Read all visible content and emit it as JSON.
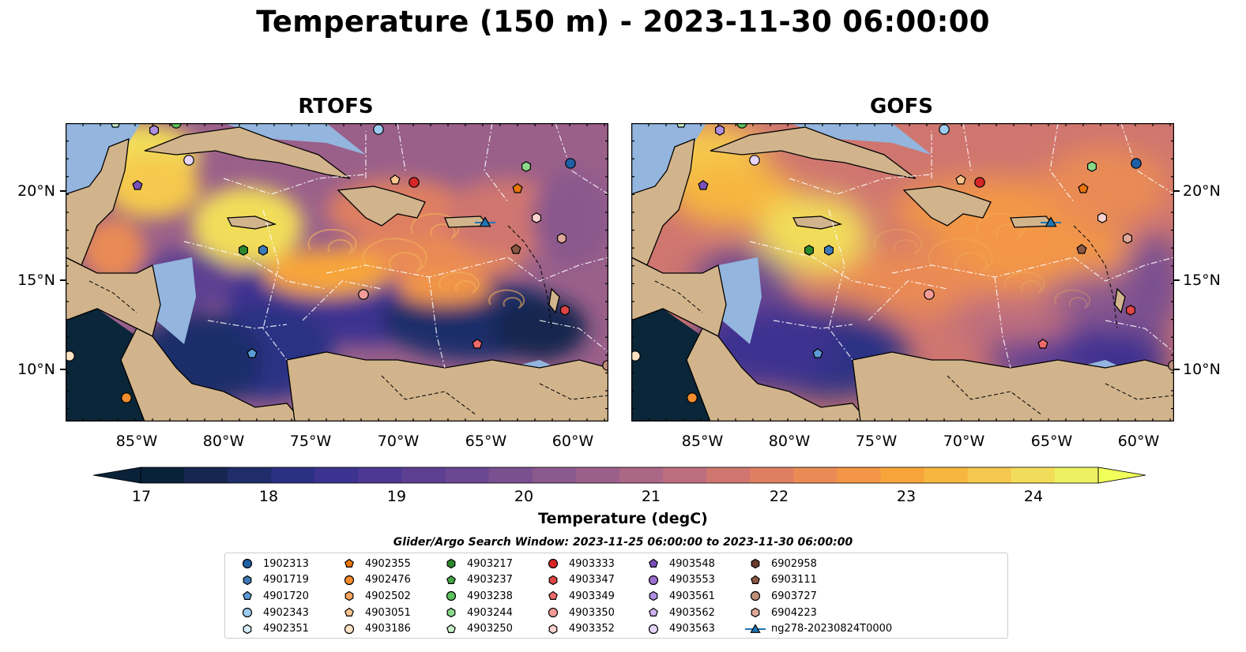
{
  "title": "Temperature (150 m) - 2023-11-30 06:00:00",
  "panels": [
    {
      "title": "RTOFS"
    },
    {
      "title": "GOFS"
    }
  ],
  "lat_ticks": [
    "20°N",
    "15°N",
    "10°N"
  ],
  "lon_ticks": [
    "85°W",
    "80°W",
    "75°W",
    "70°W",
    "65°W",
    "60°W"
  ],
  "colorbar": {
    "label": "Temperature (degC)",
    "ticks": [
      "17",
      "18",
      "19",
      "20",
      "21",
      "22",
      "23",
      "24"
    ],
    "range": [
      17,
      24.5
    ],
    "colors": [
      "#09223a",
      "#172650",
      "#1f2d6a",
      "#2c3084",
      "#3c3390",
      "#4d3993",
      "#5d3f92",
      "#6b4791",
      "#7a5090",
      "#8a598d",
      "#9a608a",
      "#ab6786",
      "#bd6e7e",
      "#cf7670",
      "#de7f62",
      "#ea8b55",
      "#f39747",
      "#f7a53a",
      "#f7b640",
      "#f5c94d",
      "#f2dd5a",
      "#eef064"
    ]
  },
  "search_window": "Glider/Argo Search Window: 2023-11-25 06:00:00 to 2023-11-30 06:00:00",
  "legend": [
    {
      "label": "1902313",
      "shape": "circle",
      "color": "#1f5fa6"
    },
    {
      "label": "4901719",
      "shape": "hexagon",
      "color": "#3d7ab8"
    },
    {
      "label": "4901720",
      "shape": "pentagon",
      "color": "#5b9bd5"
    },
    {
      "label": "4902343",
      "shape": "circle",
      "color": "#9ccbef"
    },
    {
      "label": "4902351",
      "shape": "hexagon",
      "color": "#d6ecfa"
    },
    {
      "label": "4902355",
      "shape": "pentagon",
      "color": "#e8750c"
    },
    {
      "label": "4902476",
      "shape": "circle",
      "color": "#f28c2e"
    },
    {
      "label": "4902502",
      "shape": "hexagon",
      "color": "#f7a65c"
    },
    {
      "label": "4903051",
      "shape": "pentagon",
      "color": "#fbc58e"
    },
    {
      "label": "4903186",
      "shape": "circle",
      "color": "#fde3c4"
    },
    {
      "label": "4903217",
      "shape": "hexagon",
      "color": "#2b8a2b"
    },
    {
      "label": "4903237",
      "shape": "pentagon",
      "color": "#45a545"
    },
    {
      "label": "4903238",
      "shape": "circle",
      "color": "#5dc05d"
    },
    {
      "label": "4903244",
      "shape": "hexagon",
      "color": "#8ad98a"
    },
    {
      "label": "4903250",
      "shape": "pentagon",
      "color": "#c8f0c8"
    },
    {
      "label": "4903333",
      "shape": "circle",
      "color": "#d62728"
    },
    {
      "label": "4903347",
      "shape": "hexagon",
      "color": "#e04545"
    },
    {
      "label": "4903349",
      "shape": "pentagon",
      "color": "#f06a6a"
    },
    {
      "label": "4903350",
      "shape": "circle",
      "color": "#f39c98"
    },
    {
      "label": "4903352",
      "shape": "hexagon",
      "color": "#fbd2d0"
    },
    {
      "label": "4903548",
      "shape": "pentagon",
      "color": "#7b4fb8"
    },
    {
      "label": "4903553",
      "shape": "circle",
      "color": "#9a6fcc"
    },
    {
      "label": "4903561",
      "shape": "hexagon",
      "color": "#b08ee0"
    },
    {
      "label": "4903562",
      "shape": "pentagon",
      "color": "#cfb2f0"
    },
    {
      "label": "4903563",
      "shape": "circle",
      "color": "#e6d4fa"
    },
    {
      "label": "6902958",
      "shape": "hexagon",
      "color": "#6b3d2e"
    },
    {
      "label": "6903111",
      "shape": "pentagon",
      "color": "#8c5846"
    },
    {
      "label": "6903727",
      "shape": "circle",
      "color": "#c08f7c"
    },
    {
      "label": "6904223",
      "shape": "hexagon",
      "color": "#e0a898"
    },
    {
      "label": "ng278-20230824T0000",
      "shape": "triangle-line",
      "color": "#1f77b4"
    }
  ]
}
